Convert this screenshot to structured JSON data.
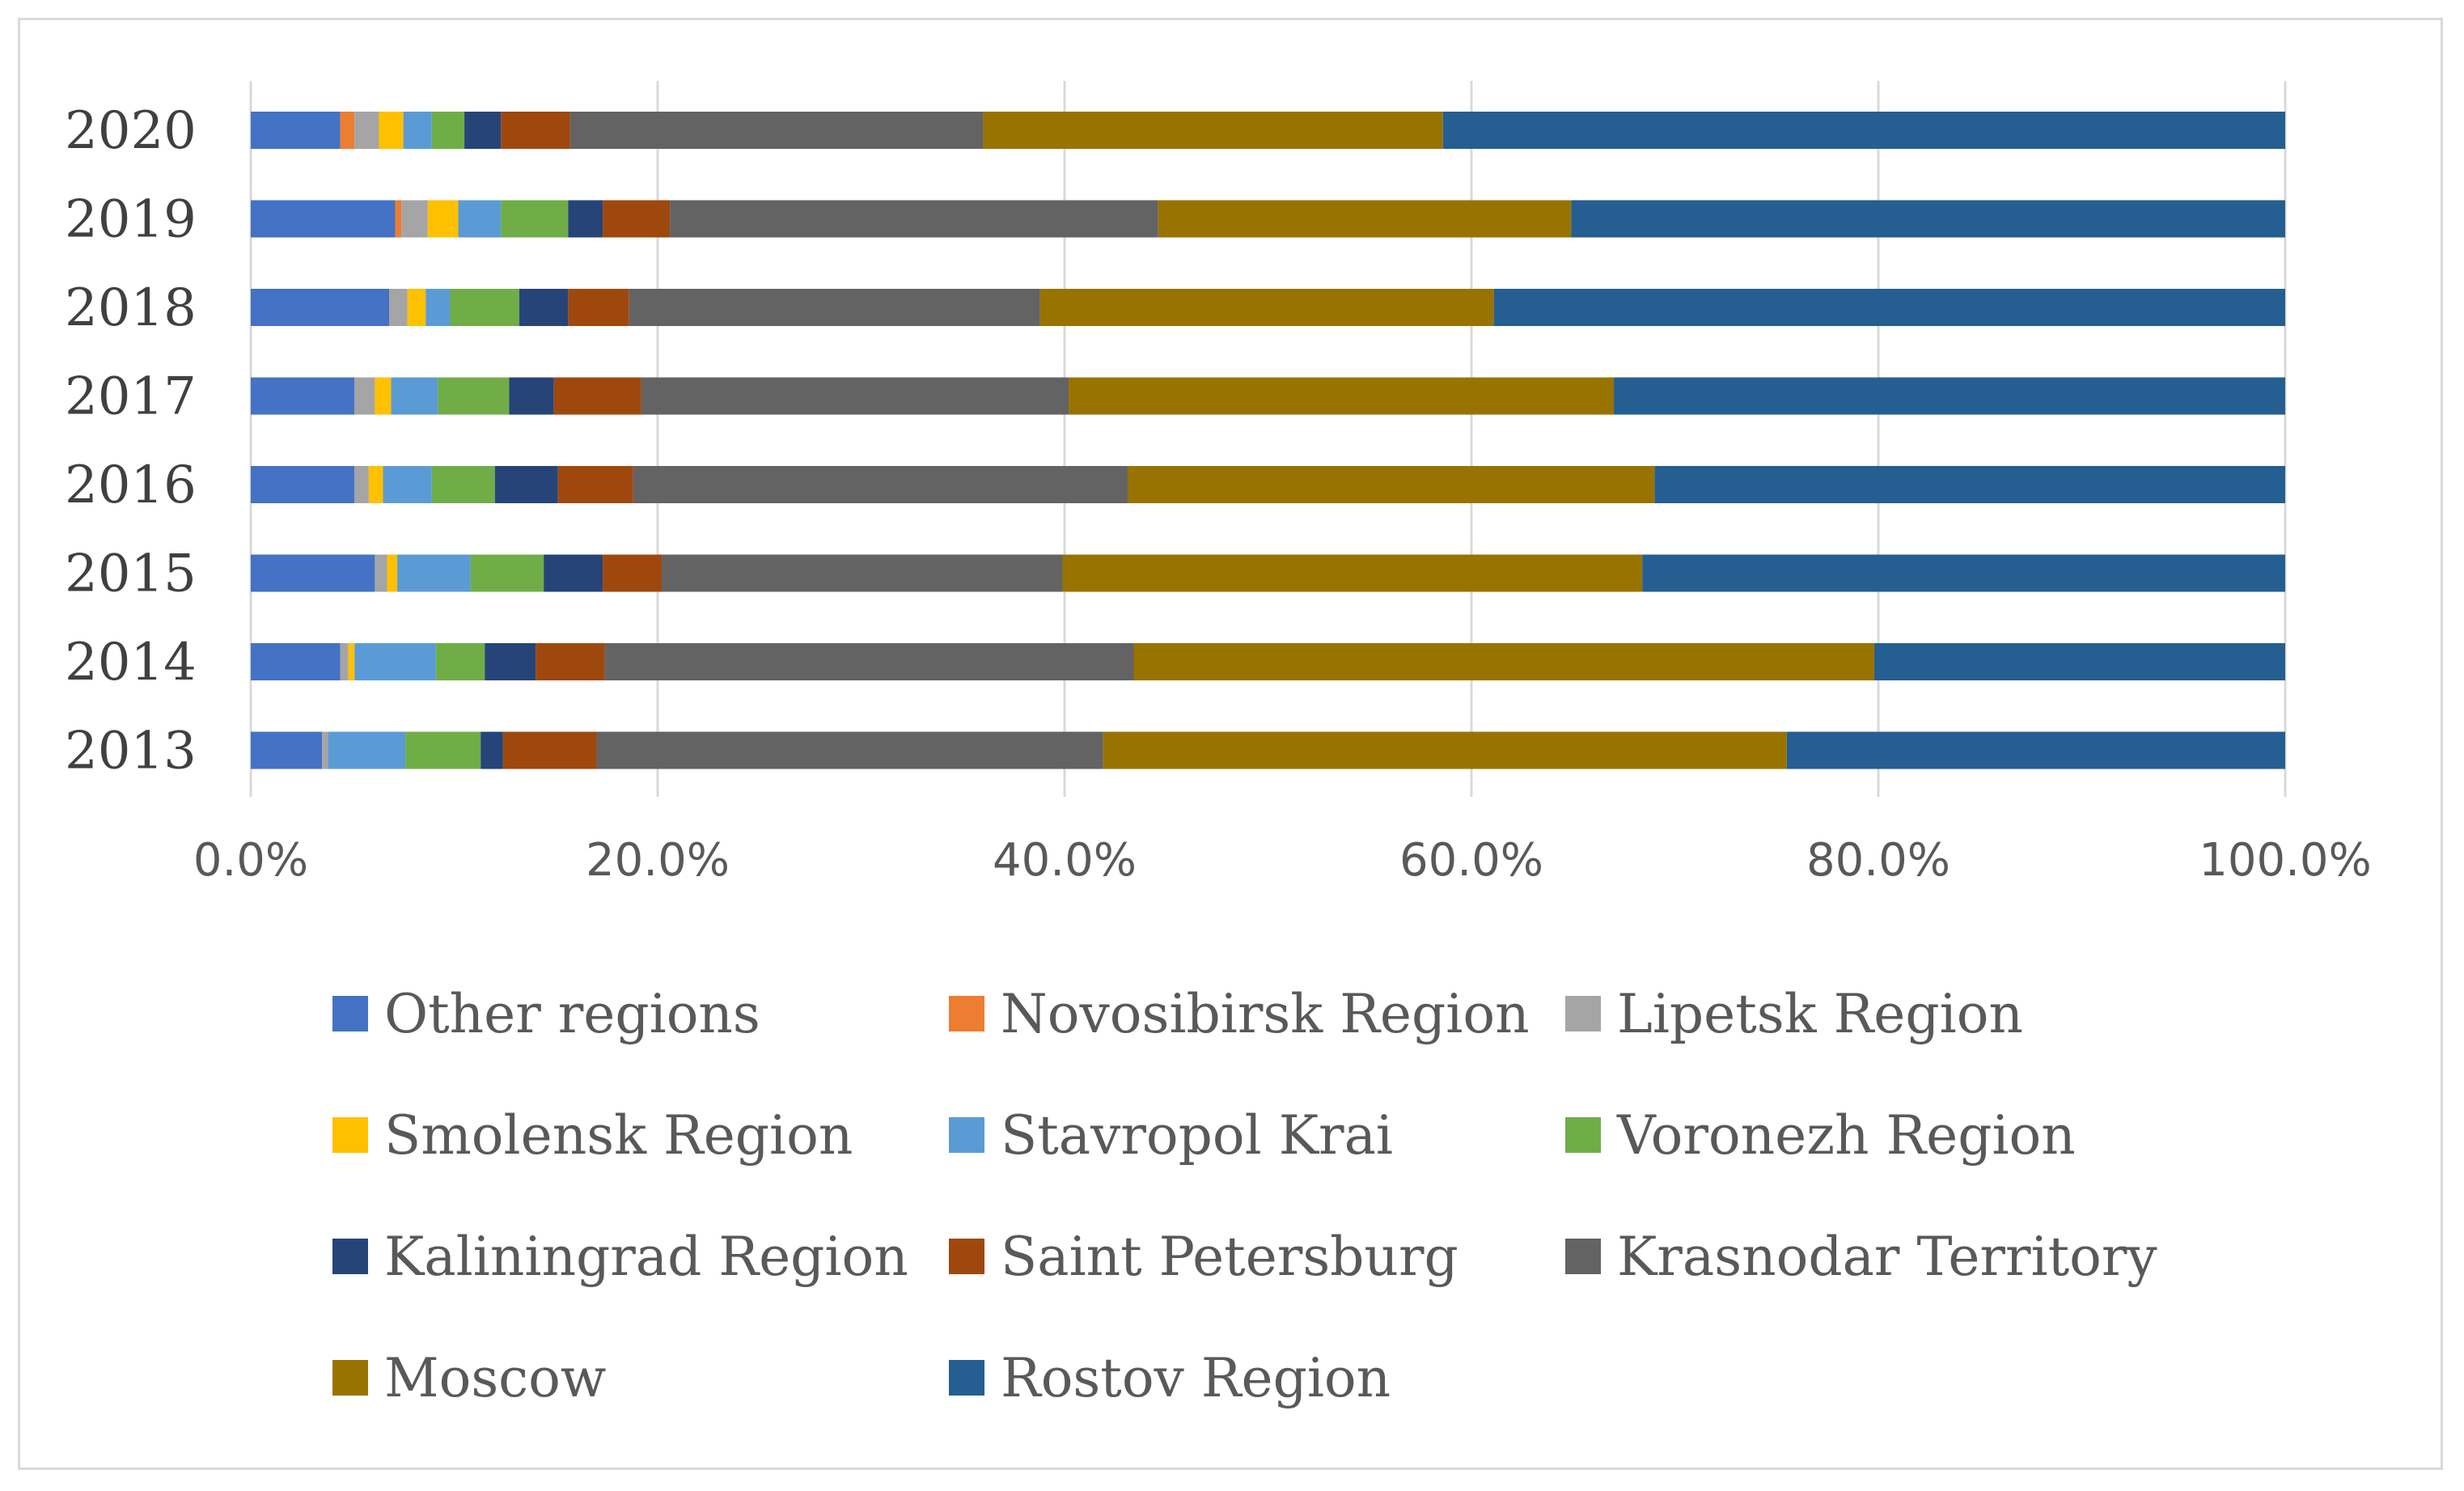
{
  "chart_data": {
    "type": "bar",
    "orientation": "horizontal",
    "stacked": "percent",
    "title": "",
    "xlabel": "",
    "ylabel": "",
    "xlim": [
      0,
      100
    ],
    "grid": true,
    "legend_position": "bottom",
    "categories": [
      "2020",
      "2019",
      "2018",
      "2017",
      "2016",
      "2015",
      "2014",
      "2013"
    ],
    "x_ticks": [
      "0.0%",
      "20.0%",
      "40.0%",
      "60.0%",
      "80.0%",
      "100.0%"
    ],
    "series": [
      {
        "name": "Other regions",
        "color": "#4472C4",
        "values": [
          4.4,
          7.1,
          6.8,
          5.1,
          5.1,
          6.1,
          4.4,
          3.5
        ]
      },
      {
        "name": "Novosibirsk Region",
        "color": "#ED7D31",
        "values": [
          0.7,
          0.3,
          0.0,
          0.0,
          0.0,
          0.0,
          0.0,
          0.0
        ]
      },
      {
        "name": "Lipetsk Region",
        "color": "#A5A5A5",
        "values": [
          1.2,
          1.3,
          0.9,
          1.0,
          0.7,
          0.6,
          0.4,
          0.3
        ]
      },
      {
        "name": "Smolensk Region",
        "color": "#FFC000",
        "values": [
          1.2,
          1.5,
          0.9,
          0.8,
          0.7,
          0.5,
          0.3,
          0.0
        ]
      },
      {
        "name": "Stavropol Krai",
        "color": "#5B9BD5",
        "values": [
          1.4,
          2.1,
          1.2,
          2.3,
          2.4,
          3.6,
          4.0,
          3.8
        ]
      },
      {
        "name": "Voronezh Region",
        "color": "#70AD47",
        "values": [
          1.6,
          3.3,
          3.4,
          3.5,
          3.1,
          3.6,
          2.4,
          3.7
        ]
      },
      {
        "name": "Kaliningrad Region",
        "color": "#264478",
        "values": [
          1.8,
          1.7,
          2.4,
          2.2,
          3.1,
          2.9,
          2.5,
          1.1
        ]
      },
      {
        "name": "Saint Petersburg",
        "color": "#9E480E",
        "values": [
          3.4,
          3.3,
          3.0,
          4.3,
          3.7,
          2.9,
          3.4,
          4.6
        ]
      },
      {
        "name": "Krasnodar Territory",
        "color": "#636363",
        "values": [
          20.3,
          24.0,
          20.2,
          21.0,
          24.3,
          19.7,
          26.0,
          24.9
        ]
      },
      {
        "name": "Moscow",
        "color": "#997300",
        "values": [
          22.6,
          20.3,
          22.3,
          26.8,
          25.9,
          28.5,
          36.4,
          33.6
        ]
      },
      {
        "name": "Rostov Region",
        "color": "#255E91",
        "values": [
          41.4,
          35.1,
          38.9,
          33.0,
          31.0,
          31.6,
          20.2,
          24.5
        ]
      }
    ]
  }
}
